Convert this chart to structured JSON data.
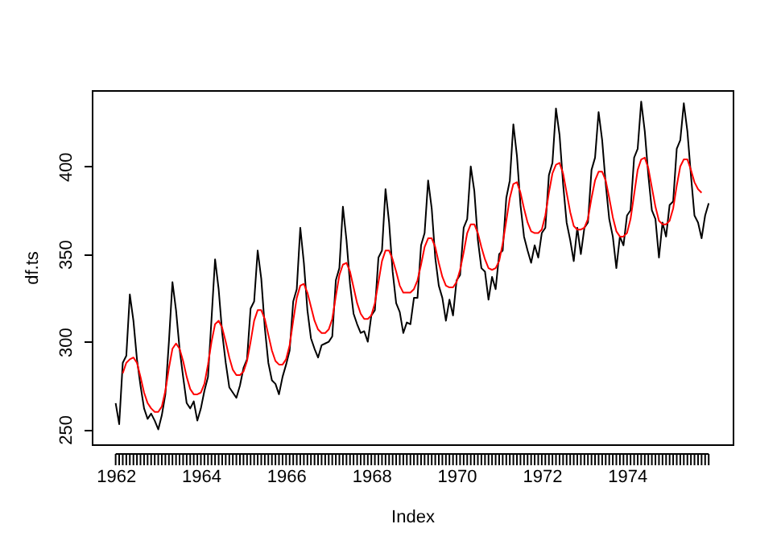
{
  "chart_data": {
    "type": "line",
    "xlabel": "Index",
    "ylabel": "df.ts",
    "grid": false,
    "marker": "none",
    "line_style": "solid",
    "xlim": [
      1961.44,
      1976.48
    ],
    "ylim": [
      241.5,
      443.5
    ],
    "yticks": [
      250,
      300,
      350,
      400
    ],
    "xticks": [
      1962,
      {
        "value": 1962.083,
        "label": null
      },
      {
        "value": 1962.167,
        "label": null
      },
      {
        "value": 1962.25,
        "label": null
      },
      {
        "value": 1962.333,
        "label": null
      },
      {
        "value": 1962.417,
        "label": null
      },
      {
        "value": 1962.5,
        "label": null
      },
      {
        "value": 1962.583,
        "label": null
      },
      {
        "value": 1962.667,
        "label": null
      },
      {
        "value": 1962.75,
        "label": null
      },
      {
        "value": 1962.833,
        "label": null
      },
      {
        "value": 1962.917,
        "label": null
      },
      {
        "value": 1963,
        "label": null
      },
      {
        "value": 1963.083,
        "label": null
      },
      {
        "value": 1963.167,
        "label": null
      },
      {
        "value": 1963.25,
        "label": null
      },
      {
        "value": 1963.333,
        "label": null
      },
      {
        "value": 1963.417,
        "label": null
      },
      {
        "value": 1963.5,
        "label": null
      },
      {
        "value": 1963.583,
        "label": null
      },
      {
        "value": 1963.667,
        "label": null
      },
      {
        "value": 1963.75,
        "label": null
      },
      {
        "value": 1963.833,
        "label": null
      },
      {
        "value": 1963.917,
        "label": null
      },
      1964,
      {
        "value": 1964.083,
        "label": null
      },
      {
        "value": 1964.167,
        "label": null
      },
      {
        "value": 1964.25,
        "label": null
      },
      {
        "value": 1964.333,
        "label": null
      },
      {
        "value": 1964.417,
        "label": null
      },
      {
        "value": 1964.5,
        "label": null
      },
      {
        "value": 1964.583,
        "label": null
      },
      {
        "value": 1964.667,
        "label": null
      },
      {
        "value": 1964.75,
        "label": null
      },
      {
        "value": 1964.833,
        "label": null
      },
      {
        "value": 1964.917,
        "label": null
      },
      {
        "value": 1965,
        "label": null
      },
      {
        "value": 1965.083,
        "label": null
      },
      {
        "value": 1965.167,
        "label": null
      },
      {
        "value": 1965.25,
        "label": null
      },
      {
        "value": 1965.333,
        "label": null
      },
      {
        "value": 1965.417,
        "label": null
      },
      {
        "value": 1965.5,
        "label": null
      },
      {
        "value": 1965.583,
        "label": null
      },
      {
        "value": 1965.667,
        "label": null
      },
      {
        "value": 1965.75,
        "label": null
      },
      {
        "value": 1965.833,
        "label": null
      },
      {
        "value": 1965.917,
        "label": null
      },
      1966,
      {
        "value": 1966.083,
        "label": null
      },
      {
        "value": 1966.167,
        "label": null
      },
      {
        "value": 1966.25,
        "label": null
      },
      {
        "value": 1966.333,
        "label": null
      },
      {
        "value": 1966.417,
        "label": null
      },
      {
        "value": 1966.5,
        "label": null
      },
      {
        "value": 1966.583,
        "label": null
      },
      {
        "value": 1966.667,
        "label": null
      },
      {
        "value": 1966.75,
        "label": null
      },
      {
        "value": 1966.833,
        "label": null
      },
      {
        "value": 1966.917,
        "label": null
      },
      {
        "value": 1967,
        "label": null
      },
      {
        "value": 1967.083,
        "label": null
      },
      {
        "value": 1967.167,
        "label": null
      },
      {
        "value": 1967.25,
        "label": null
      },
      {
        "value": 1967.333,
        "label": null
      },
      {
        "value": 1967.417,
        "label": null
      },
      {
        "value": 1967.5,
        "label": null
      },
      {
        "value": 1967.583,
        "label": null
      },
      {
        "value": 1967.667,
        "label": null
      },
      {
        "value": 1967.75,
        "label": null
      },
      {
        "value": 1967.833,
        "label": null
      },
      {
        "value": 1967.917,
        "label": null
      },
      1968,
      {
        "value": 1968.083,
        "label": null
      },
      {
        "value": 1968.167,
        "label": null
      },
      {
        "value": 1968.25,
        "label": null
      },
      {
        "value": 1968.333,
        "label": null
      },
      {
        "value": 1968.417,
        "label": null
      },
      {
        "value": 1968.5,
        "label": null
      },
      {
        "value": 1968.583,
        "label": null
      },
      {
        "value": 1968.667,
        "label": null
      },
      {
        "value": 1968.75,
        "label": null
      },
      {
        "value": 1968.833,
        "label": null
      },
      {
        "value": 1968.917,
        "label": null
      },
      {
        "value": 1969,
        "label": null
      },
      {
        "value": 1969.083,
        "label": null
      },
      {
        "value": 1969.167,
        "label": null
      },
      {
        "value": 1969.25,
        "label": null
      },
      {
        "value": 1969.333,
        "label": null
      },
      {
        "value": 1969.417,
        "label": null
      },
      {
        "value": 1969.5,
        "label": null
      },
      {
        "value": 1969.583,
        "label": null
      },
      {
        "value": 1969.667,
        "label": null
      },
      {
        "value": 1969.75,
        "label": null
      },
      {
        "value": 1969.833,
        "label": null
      },
      {
        "value": 1969.917,
        "label": null
      },
      1970,
      {
        "value": 1970.083,
        "label": null
      },
      {
        "value": 1970.167,
        "label": null
      },
      {
        "value": 1970.25,
        "label": null
      },
      {
        "value": 1970.333,
        "label": null
      },
      {
        "value": 1970.417,
        "label": null
      },
      {
        "value": 1970.5,
        "label": null
      },
      {
        "value": 1970.583,
        "label": null
      },
      {
        "value": 1970.667,
        "label": null
      },
      {
        "value": 1970.75,
        "label": null
      },
      {
        "value": 1970.833,
        "label": null
      },
      {
        "value": 1970.917,
        "label": null
      },
      {
        "value": 1971,
        "label": null
      },
      {
        "value": 1971.083,
        "label": null
      },
      {
        "value": 1971.167,
        "label": null
      },
      {
        "value": 1971.25,
        "label": null
      },
      {
        "value": 1971.333,
        "label": null
      },
      {
        "value": 1971.417,
        "label": null
      },
      {
        "value": 1971.5,
        "label": null
      },
      {
        "value": 1971.583,
        "label": null
      },
      {
        "value": 1971.667,
        "label": null
      },
      {
        "value": 1971.75,
        "label": null
      },
      {
        "value": 1971.833,
        "label": null
      },
      {
        "value": 1971.917,
        "label": null
      },
      1972,
      {
        "value": 1972.083,
        "label": null
      },
      {
        "value": 1972.167,
        "label": null
      },
      {
        "value": 1972.25,
        "label": null
      },
      {
        "value": 1972.333,
        "label": null
      },
      {
        "value": 1972.417,
        "label": null
      },
      {
        "value": 1972.5,
        "label": null
      },
      {
        "value": 1972.583,
        "label": null
      },
      {
        "value": 1972.667,
        "label": null
      },
      {
        "value": 1972.75,
        "label": null
      },
      {
        "value": 1972.833,
        "label": null
      },
      {
        "value": 1972.917,
        "label": null
      },
      {
        "value": 1973,
        "label": null
      },
      {
        "value": 1973.083,
        "label": null
      },
      {
        "value": 1973.167,
        "label": null
      },
      {
        "value": 1973.25,
        "label": null
      },
      {
        "value": 1973.333,
        "label": null
      },
      {
        "value": 1973.417,
        "label": null
      },
      {
        "value": 1973.5,
        "label": null
      },
      {
        "value": 1973.583,
        "label": null
      },
      {
        "value": 1973.667,
        "label": null
      },
      {
        "value": 1973.75,
        "label": null
      },
      {
        "value": 1973.833,
        "label": null
      },
      {
        "value": 1973.917,
        "label": null
      },
      1974,
      {
        "value": 1974.083,
        "label": null
      },
      {
        "value": 1974.167,
        "label": null
      },
      {
        "value": 1974.25,
        "label": null
      },
      {
        "value": 1974.333,
        "label": null
      },
      {
        "value": 1974.417,
        "label": null
      },
      {
        "value": 1974.5,
        "label": null
      },
      {
        "value": 1974.583,
        "label": null
      },
      {
        "value": 1974.667,
        "label": null
      },
      {
        "value": 1974.75,
        "label": null
      },
      {
        "value": 1974.833,
        "label": null
      },
      {
        "value": 1974.917,
        "label": null
      },
      {
        "value": 1975,
        "label": null
      },
      {
        "value": 1975.083,
        "label": null
      },
      {
        "value": 1975.167,
        "label": null
      },
      {
        "value": 1975.25,
        "label": null
      },
      {
        "value": 1975.333,
        "label": null
      },
      {
        "value": 1975.417,
        "label": null
      },
      {
        "value": 1975.5,
        "label": null
      },
      {
        "value": 1975.583,
        "label": null
      },
      {
        "value": 1975.667,
        "label": null
      },
      {
        "value": 1975.75,
        "label": null
      },
      {
        "value": 1975.833,
        "label": null
      },
      {
        "value": 1975.917,
        "label": null
      }
    ],
    "series": [
      {
        "color": "#000000",
        "x": [
          1962,
          1962.083,
          1962.167,
          1962.25,
          1962.333,
          1962.417,
          1962.5,
          1962.583,
          1962.667,
          1962.75,
          1962.833,
          1962.917,
          1963,
          1963.083,
          1963.167,
          1963.25,
          1963.333,
          1963.417,
          1963.5,
          1963.583,
          1963.667,
          1963.75,
          1963.833,
          1963.917,
          1964,
          1964.083,
          1964.167,
          1964.25,
          1964.333,
          1964.417,
          1964.5,
          1964.583,
          1964.667,
          1964.75,
          1964.833,
          1964.917,
          1965,
          1965.083,
          1965.167,
          1965.25,
          1965.333,
          1965.417,
          1965.5,
          1965.583,
          1965.667,
          1965.75,
          1965.833,
          1965.917,
          1966,
          1966.083,
          1966.167,
          1966.25,
          1966.333,
          1966.417,
          1966.5,
          1966.583,
          1966.667,
          1966.75,
          1966.833,
          1966.917,
          1967,
          1967.083,
          1967.167,
          1967.25,
          1967.333,
          1967.417,
          1967.5,
          1967.583,
          1967.667,
          1967.75,
          1967.833,
          1967.917,
          1968,
          1968.083,
          1968.167,
          1968.25,
          1968.333,
          1968.417,
          1968.5,
          1968.583,
          1968.667,
          1968.75,
          1968.833,
          1968.917,
          1969,
          1969.083,
          1969.167,
          1969.25,
          1969.333,
          1969.417,
          1969.5,
          1969.583,
          1969.667,
          1969.75,
          1969.833,
          1969.917,
          1970,
          1970.083,
          1970.167,
          1970.25,
          1970.333,
          1970.417,
          1970.5,
          1970.583,
          1970.667,
          1970.75,
          1970.833,
          1970.917,
          1971,
          1971.083,
          1971.167,
          1971.25,
          1971.333,
          1971.417,
          1971.5,
          1971.583,
          1971.667,
          1971.75,
          1971.833,
          1971.917,
          1972,
          1972.083,
          1972.167,
          1972.25,
          1972.333,
          1972.417,
          1972.5,
          1972.583,
          1972.667,
          1972.75,
          1972.833,
          1972.917,
          1973,
          1973.083,
          1973.167,
          1973.25,
          1973.333,
          1973.417,
          1973.5,
          1973.583,
          1973.667,
          1973.75,
          1973.833,
          1973.917,
          1974,
          1974.083,
          1974.167,
          1974.25,
          1974.333,
          1974.417,
          1974.5,
          1974.583,
          1974.667,
          1974.75,
          1974.833,
          1974.917,
          1975,
          1975.083,
          1975.167,
          1975.25,
          1975.333,
          1975.417,
          1975.5,
          1975.583,
          1975.667,
          1975.75,
          1975.833,
          1975.917
        ],
        "values": [
          265,
          253,
          288,
          292,
          327,
          312,
          290,
          275,
          262,
          256,
          259,
          255,
          250,
          258,
          270,
          300,
          334,
          318,
          296,
          280,
          265,
          262,
          266,
          255,
          262,
          272,
          280,
          313,
          347,
          330,
          305,
          288,
          274,
          271,
          268,
          275,
          285,
          290,
          319,
          323,
          352,
          336,
          308,
          288,
          278,
          276,
          270,
          280,
          287,
          295,
          323,
          330,
          365,
          345,
          318,
          302,
          296,
          291,
          298,
          299,
          300,
          303,
          335,
          342,
          377,
          358,
          333,
          316,
          310,
          305,
          306,
          300,
          315,
          318,
          348,
          352,
          387,
          368,
          340,
          322,
          317,
          305,
          311,
          310,
          325,
          325,
          355,
          362,
          392,
          376,
          348,
          332,
          325,
          312,
          324,
          315,
          335,
          338,
          365,
          370,
          400,
          386,
          358,
          342,
          340,
          324,
          337,
          330,
          350,
          352,
          382,
          392,
          424,
          406,
          378,
          360,
          352,
          345,
          355,
          348,
          362,
          365,
          395,
          402,
          433,
          418,
          390,
          368,
          358,
          346,
          365,
          350,
          365,
          368,
          398,
          405,
          431,
          415,
          390,
          370,
          360,
          342,
          360,
          355,
          372,
          375,
          405,
          410,
          437,
          420,
          395,
          375,
          370,
          348,
          368,
          360,
          378,
          380,
          410,
          415,
          436,
          420,
          395,
          372,
          368,
          359,
          372,
          379
        ]
      },
      {
        "color": "#ff0000",
        "x": [
          1962.167,
          1962.25,
          1962.333,
          1962.417,
          1962.5,
          1962.583,
          1962.667,
          1962.75,
          1962.833,
          1962.917,
          1963,
          1963.083,
          1963.167,
          1963.25,
          1963.333,
          1963.417,
          1963.5,
          1963.583,
          1963.667,
          1963.75,
          1963.833,
          1963.917,
          1964,
          1964.083,
          1964.167,
          1964.25,
          1964.333,
          1964.417,
          1964.5,
          1964.583,
          1964.667,
          1964.75,
          1964.833,
          1964.917,
          1965,
          1965.083,
          1965.167,
          1965.25,
          1965.333,
          1965.417,
          1965.5,
          1965.583,
          1965.667,
          1965.75,
          1965.833,
          1965.917,
          1966,
          1966.083,
          1966.167,
          1966.25,
          1966.333,
          1966.417,
          1966.5,
          1966.583,
          1966.667,
          1966.75,
          1966.833,
          1966.917,
          1967,
          1967.083,
          1967.167,
          1967.25,
          1967.333,
          1967.417,
          1967.5,
          1967.583,
          1967.667,
          1967.75,
          1967.833,
          1967.917,
          1968,
          1968.083,
          1968.167,
          1968.25,
          1968.333,
          1968.417,
          1968.5,
          1968.583,
          1968.667,
          1968.75,
          1968.833,
          1968.917,
          1969,
          1969.083,
          1969.167,
          1969.25,
          1969.333,
          1969.417,
          1969.5,
          1969.583,
          1969.667,
          1969.75,
          1969.833,
          1969.917,
          1970,
          1970.083,
          1970.167,
          1970.25,
          1970.333,
          1970.417,
          1970.5,
          1970.583,
          1970.667,
          1970.75,
          1970.833,
          1970.917,
          1971,
          1971.083,
          1971.167,
          1971.25,
          1971.333,
          1971.417,
          1971.5,
          1971.583,
          1971.667,
          1971.75,
          1971.833,
          1971.917,
          1972,
          1972.083,
          1972.167,
          1972.25,
          1972.333,
          1972.417,
          1972.5,
          1972.583,
          1972.667,
          1972.75,
          1972.833,
          1972.917,
          1973,
          1973.083,
          1973.167,
          1973.25,
          1973.333,
          1973.417,
          1973.5,
          1973.583,
          1973.667,
          1973.75,
          1973.833,
          1973.917,
          1974,
          1974.083,
          1974.167,
          1974.25,
          1974.333,
          1974.417,
          1974.5,
          1974.583,
          1974.667,
          1974.75,
          1974.833,
          1974.917,
          1975,
          1975.083,
          1975.167,
          1975.25,
          1975.333,
          1975.417,
          1975.5,
          1975.583,
          1975.667,
          1975.75
        ],
        "values": [
          282,
          288,
          290,
          291,
          288,
          280,
          271,
          265,
          262,
          260,
          260,
          263,
          272,
          285,
          296,
          299,
          296,
          289,
          280,
          273,
          270,
          270,
          271,
          276,
          287,
          300,
          310,
          312,
          308,
          300,
          291,
          284,
          281,
          281,
          283,
          289,
          300,
          312,
          318,
          318,
          313,
          304,
          295,
          289,
          287,
          287,
          290,
          298,
          312,
          325,
          332,
          333,
          328,
          320,
          312,
          307,
          305,
          305,
          307,
          313,
          326,
          338,
          344,
          345,
          340,
          331,
          322,
          316,
          313,
          313,
          315,
          322,
          334,
          346,
          352,
          352,
          347,
          340,
          332,
          328,
          328,
          328,
          330,
          335,
          344,
          354,
          359,
          359,
          354,
          345,
          337,
          332,
          331,
          331,
          334,
          341,
          351,
          362,
          367,
          367,
          362,
          354,
          347,
          342,
          341,
          342,
          346,
          356,
          369,
          382,
          390,
          391,
          385,
          376,
          368,
          363,
          362,
          362,
          364,
          372,
          385,
          396,
          401,
          402,
          396,
          385,
          374,
          366,
          364,
          364,
          365,
          370,
          382,
          392,
          397,
          397,
          392,
          382,
          371,
          363,
          360,
          360,
          362,
          370,
          384,
          398,
          404,
          405,
          399,
          388,
          377,
          369,
          367,
          367,
          369,
          376,
          389,
          400,
          404,
          404,
          398,
          391,
          387,
          385
        ]
      }
    ]
  }
}
